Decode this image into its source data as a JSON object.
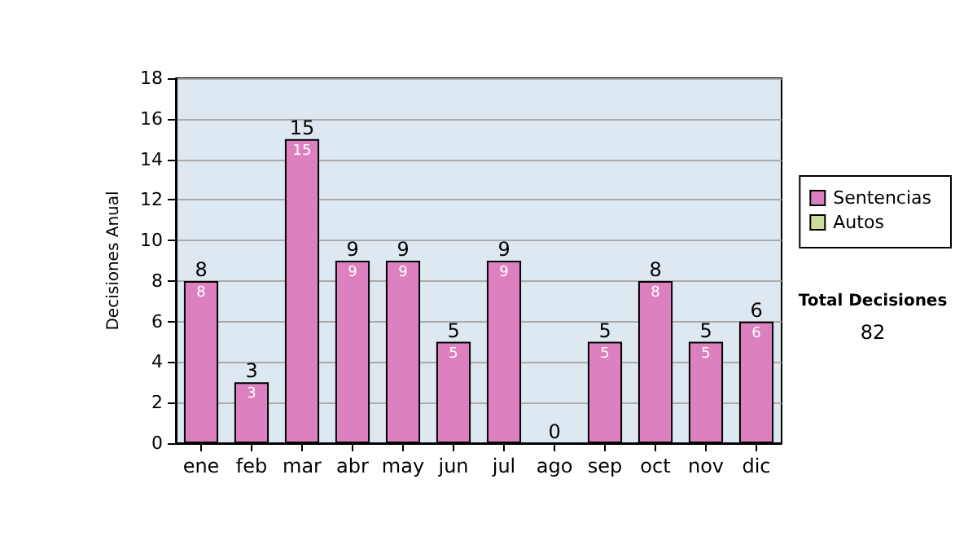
{
  "chart_data": {
    "type": "bar",
    "ylabel": "Decisiones Anual",
    "categories": [
      "ene",
      "feb",
      "mar",
      "abr",
      "may",
      "jun",
      "jul",
      "ago",
      "sep",
      "oct",
      "nov",
      "dic"
    ],
    "series": [
      {
        "name": "Sentencias",
        "color": "#dd80c0",
        "values": [
          8,
          3,
          15,
          9,
          9,
          5,
          9,
          0,
          5,
          8,
          5,
          6
        ],
        "value_labels": [
          "8",
          "3",
          "15",
          "9",
          "9",
          "5",
          "9",
          null,
          "5",
          "8",
          "5",
          "6"
        ]
      },
      {
        "name": "Autos",
        "color": "#ccdd99",
        "values": [
          0,
          0,
          0,
          0,
          0,
          0,
          0,
          0,
          0,
          0,
          0,
          0
        ]
      }
    ],
    "stacked": true,
    "totals": [
      "8",
      "3",
      "15",
      "9",
      "9",
      "5",
      "9",
      "0",
      "5",
      "8",
      "5",
      "6"
    ],
    "ylim": [
      0,
      18
    ],
    "yticks": [
      0,
      2,
      4,
      6,
      8,
      10,
      12,
      14,
      16,
      18
    ],
    "grid": "y",
    "legend": "right",
    "annotations": [
      "Total Decisiones",
      "82"
    ]
  }
}
